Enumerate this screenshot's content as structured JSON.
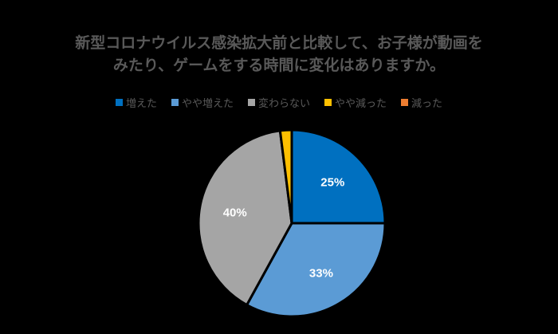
{
  "chart_data": {
    "type": "pie",
    "title_lines": [
      "新型コロナウイルス感染拡大前と比較して、お子様が動画を",
      "みたり、ゲームをする時間に変化はありますか。"
    ],
    "categories": [
      "増えた",
      "やや増えた",
      "変わらない",
      "やや減った",
      "減った"
    ],
    "values": [
      25,
      33,
      40,
      2,
      0
    ],
    "colors": [
      "#0070C0",
      "#5B9BD5",
      "#A5A5A5",
      "#FFC000",
      "#ED7D31"
    ],
    "data_labels": [
      "25%",
      "33%",
      "40%",
      "",
      ""
    ],
    "data_label_colors": [
      "#FFFFFF",
      "#FFFFFF",
      "#FFFFFF",
      "#FFFFFF",
      "#FFFFFF"
    ],
    "legend_position": "top"
  }
}
